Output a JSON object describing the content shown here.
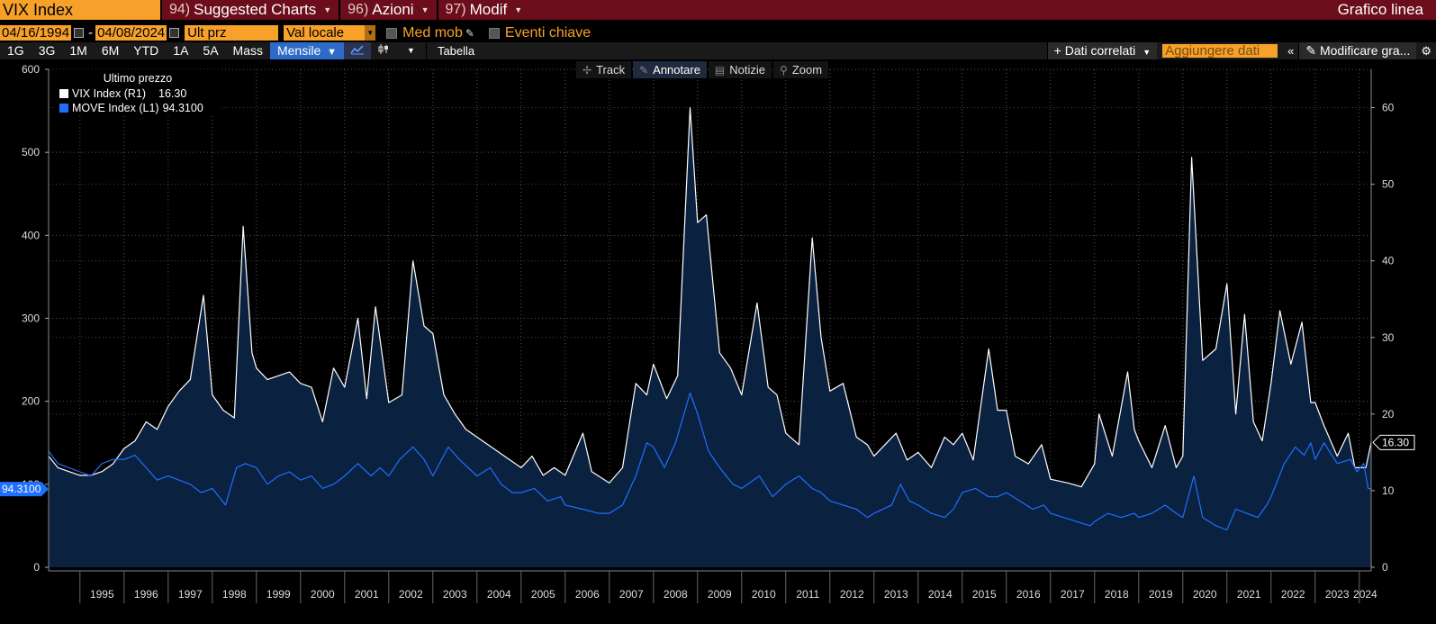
{
  "header": {
    "ticker": "VIX Index",
    "menus": [
      {
        "num": "94)",
        "label": "Suggested Charts"
      },
      {
        "num": "96)",
        "label": "Azioni"
      },
      {
        "num": "97)",
        "label": "Modif"
      }
    ],
    "chart_type_title": "Grafico linea"
  },
  "controls": {
    "start_date": "04/16/1994",
    "end_date": "04/08/2024",
    "price_field": "Ult prz",
    "currency": "Val locale",
    "moving_avg": "Med mob",
    "key_events": "Eventi chiave"
  },
  "toolbar": {
    "periods": [
      "1G",
      "3G",
      "1M",
      "6M",
      "YTD",
      "1A",
      "5A",
      "Mass"
    ],
    "frequency": "Mensile",
    "table": "Tabella",
    "related_data": "Dati correlati",
    "add_data_placeholder": "Aggiungere dati",
    "edit_chart": "Modificare gra..."
  },
  "chart_tools": [
    "Track",
    "Annotare",
    "Notizie",
    "Zoom"
  ],
  "legend": {
    "title": "Ultimo prezzo",
    "items": [
      {
        "name": "VIX Index",
        "axis": "(R1)",
        "value": "16.30",
        "color": "#ffffff"
      },
      {
        "name": "MOVE Index",
        "axis": "(L1)",
        "value": "94.3100",
        "color": "#1e6fff"
      }
    ]
  },
  "chart_data": {
    "type": "line",
    "title": "",
    "x_labels": [
      "1995",
      "1996",
      "1997",
      "1998",
      "1999",
      "2000",
      "2001",
      "2002",
      "2003",
      "2004",
      "2005",
      "2006",
      "2007",
      "2008",
      "2009",
      "2010",
      "2011",
      "2012",
      "2013",
      "2014",
      "2015",
      "2016",
      "2017",
      "2018",
      "2019",
      "2020",
      "2021",
      "2022",
      "2023",
      "2024"
    ],
    "x_range": [
      1994.29,
      2024.27
    ],
    "left_axis": {
      "range": [
        0,
        600
      ],
      "ticks": [
        0,
        100,
        200,
        300,
        400,
        500,
        600
      ],
      "last_value_label": "94.3100"
    },
    "right_axis": {
      "range": [
        0,
        65
      ],
      "ticks": [
        0,
        10,
        20,
        30,
        40,
        50,
        60
      ],
      "last_value_label": "16.30"
    },
    "series": [
      {
        "name": "VIX Index",
        "axis": "right",
        "color": "#ffffff",
        "fill": "#0b2140",
        "points": [
          [
            1994.29,
            14.5
          ],
          [
            1994.5,
            13.0
          ],
          [
            1994.75,
            12.5
          ],
          [
            1995.0,
            12.0
          ],
          [
            1995.25,
            12.0
          ],
          [
            1995.5,
            12.5
          ],
          [
            1995.75,
            13.5
          ],
          [
            1996.0,
            15.5
          ],
          [
            1996.25,
            16.5
          ],
          [
            1996.5,
            19.0
          ],
          [
            1996.75,
            18.0
          ],
          [
            1997.0,
            21.0
          ],
          [
            1997.25,
            23.0
          ],
          [
            1997.5,
            24.5
          ],
          [
            1997.8,
            35.5
          ],
          [
            1998.0,
            22.5
          ],
          [
            1998.25,
            20.5
          ],
          [
            1998.5,
            19.5
          ],
          [
            1998.7,
            44.5
          ],
          [
            1998.9,
            28.0
          ],
          [
            1999.0,
            26.0
          ],
          [
            1999.25,
            24.5
          ],
          [
            1999.5,
            25.0
          ],
          [
            1999.75,
            25.5
          ],
          [
            2000.0,
            24.0
          ],
          [
            2000.25,
            23.5
          ],
          [
            2000.5,
            19.0
          ],
          [
            2000.75,
            26.0
          ],
          [
            2001.0,
            23.5
          ],
          [
            2001.3,
            32.5
          ],
          [
            2001.5,
            22.0
          ],
          [
            2001.7,
            34.0
          ],
          [
            2002.0,
            21.5
          ],
          [
            2002.3,
            22.5
          ],
          [
            2002.55,
            40.0
          ],
          [
            2002.8,
            31.5
          ],
          [
            2003.0,
            30.5
          ],
          [
            2003.25,
            22.5
          ],
          [
            2003.5,
            20.0
          ],
          [
            2003.75,
            18.0
          ],
          [
            2004.0,
            17.0
          ],
          [
            2004.25,
            16.0
          ],
          [
            2004.5,
            15.0
          ],
          [
            2004.75,
            14.0
          ],
          [
            2005.0,
            13.0
          ],
          [
            2005.25,
            14.5
          ],
          [
            2005.5,
            12.0
          ],
          [
            2005.75,
            13.0
          ],
          [
            2006.0,
            12.0
          ],
          [
            2006.4,
            17.5
          ],
          [
            2006.6,
            12.5
          ],
          [
            2007.0,
            11.0
          ],
          [
            2007.3,
            13.0
          ],
          [
            2007.6,
            24.0
          ],
          [
            2007.85,
            22.5
          ],
          [
            2008.0,
            26.5
          ],
          [
            2008.3,
            22.0
          ],
          [
            2008.55,
            25.0
          ],
          [
            2008.83,
            60.0
          ],
          [
            2009.0,
            45.0
          ],
          [
            2009.2,
            46.0
          ],
          [
            2009.5,
            28.0
          ],
          [
            2009.75,
            26.0
          ],
          [
            2010.0,
            22.5
          ],
          [
            2010.35,
            34.5
          ],
          [
            2010.6,
            23.5
          ],
          [
            2010.8,
            22.5
          ],
          [
            2011.0,
            17.5
          ],
          [
            2011.3,
            16.0
          ],
          [
            2011.6,
            43.0
          ],
          [
            2011.8,
            30.0
          ],
          [
            2012.0,
            23.0
          ],
          [
            2012.3,
            24.0
          ],
          [
            2012.6,
            17.0
          ],
          [
            2012.85,
            16.0
          ],
          [
            2013.0,
            14.5
          ],
          [
            2013.5,
            17.5
          ],
          [
            2013.75,
            14.0
          ],
          [
            2014.0,
            15.0
          ],
          [
            2014.3,
            13.0
          ],
          [
            2014.6,
            17.0
          ],
          [
            2014.8,
            16.0
          ],
          [
            2015.0,
            17.5
          ],
          [
            2015.25,
            14.0
          ],
          [
            2015.6,
            28.5
          ],
          [
            2015.8,
            20.5
          ],
          [
            2016.0,
            20.5
          ],
          [
            2016.2,
            14.5
          ],
          [
            2016.5,
            13.5
          ],
          [
            2016.8,
            16.0
          ],
          [
            2017.0,
            11.5
          ],
          [
            2017.4,
            11.0
          ],
          [
            2017.7,
            10.5
          ],
          [
            2018.0,
            13.5
          ],
          [
            2018.1,
            20.0
          ],
          [
            2018.4,
            14.5
          ],
          [
            2018.75,
            25.5
          ],
          [
            2018.9,
            18.0
          ],
          [
            2019.0,
            16.5
          ],
          [
            2019.3,
            13.0
          ],
          [
            2019.6,
            18.5
          ],
          [
            2019.85,
            13.0
          ],
          [
            2020.0,
            14.5
          ],
          [
            2020.2,
            53.5
          ],
          [
            2020.45,
            27.0
          ],
          [
            2020.75,
            28.5
          ],
          [
            2021.0,
            37.0
          ],
          [
            2021.2,
            20.0
          ],
          [
            2021.4,
            33.0
          ],
          [
            2021.6,
            19.0
          ],
          [
            2021.8,
            16.5
          ],
          [
            2022.0,
            24.0
          ],
          [
            2022.2,
            33.5
          ],
          [
            2022.45,
            26.5
          ],
          [
            2022.7,
            32.0
          ],
          [
            2022.9,
            21.5
          ],
          [
            2023.0,
            21.5
          ],
          [
            2023.2,
            18.5
          ],
          [
            2023.5,
            14.5
          ],
          [
            2023.75,
            17.5
          ],
          [
            2023.9,
            13.0
          ],
          [
            2024.0,
            13.0
          ],
          [
            2024.15,
            13.0
          ],
          [
            2024.27,
            16.3
          ]
        ]
      },
      {
        "name": "MOVE Index",
        "axis": "left",
        "color": "#1e6fff",
        "points": [
          [
            1994.29,
            140
          ],
          [
            1994.5,
            125
          ],
          [
            1994.75,
            120
          ],
          [
            1995.0,
            115
          ],
          [
            1995.25,
            110
          ],
          [
            1995.5,
            125
          ],
          [
            1995.75,
            130
          ],
          [
            1996.0,
            130
          ],
          [
            1996.25,
            135
          ],
          [
            1996.5,
            120
          ],
          [
            1996.75,
            105
          ],
          [
            1997.0,
            110
          ],
          [
            1997.25,
            105
          ],
          [
            1997.5,
            100
          ],
          [
            1997.75,
            90
          ],
          [
            1998.0,
            95
          ],
          [
            1998.3,
            75
          ],
          [
            1998.55,
            120
          ],
          [
            1998.75,
            125
          ],
          [
            1999.0,
            120
          ],
          [
            1999.25,
            100
          ],
          [
            1999.5,
            110
          ],
          [
            1999.75,
            115
          ],
          [
            2000.0,
            105
          ],
          [
            2000.25,
            110
          ],
          [
            2000.5,
            95
          ],
          [
            2000.75,
            100
          ],
          [
            2001.0,
            110
          ],
          [
            2001.3,
            125
          ],
          [
            2001.6,
            110
          ],
          [
            2001.8,
            120
          ],
          [
            2002.0,
            110
          ],
          [
            2002.25,
            130
          ],
          [
            2002.55,
            145
          ],
          [
            2002.8,
            130
          ],
          [
            2003.0,
            110
          ],
          [
            2003.35,
            145
          ],
          [
            2003.6,
            130
          ],
          [
            2003.8,
            120
          ],
          [
            2004.0,
            110
          ],
          [
            2004.3,
            120
          ],
          [
            2004.55,
            100
          ],
          [
            2004.8,
            90
          ],
          [
            2005.0,
            90
          ],
          [
            2005.3,
            95
          ],
          [
            2005.6,
            80
          ],
          [
            2005.9,
            85
          ],
          [
            2006.0,
            75
          ],
          [
            2006.4,
            70
          ],
          [
            2006.75,
            65
          ],
          [
            2007.0,
            65
          ],
          [
            2007.3,
            75
          ],
          [
            2007.6,
            110
          ],
          [
            2007.85,
            150
          ],
          [
            2008.0,
            145
          ],
          [
            2008.25,
            120
          ],
          [
            2008.5,
            150
          ],
          [
            2008.83,
            210
          ],
          [
            2009.0,
            185
          ],
          [
            2009.25,
            140
          ],
          [
            2009.5,
            120
          ],
          [
            2009.8,
            100
          ],
          [
            2010.0,
            95
          ],
          [
            2010.4,
            110
          ],
          [
            2010.7,
            85
          ],
          [
            2010.9,
            95
          ],
          [
            2011.0,
            100
          ],
          [
            2011.3,
            110
          ],
          [
            2011.6,
            95
          ],
          [
            2011.8,
            90
          ],
          [
            2012.0,
            80
          ],
          [
            2012.3,
            75
          ],
          [
            2012.6,
            70
          ],
          [
            2012.85,
            60
          ],
          [
            2013.0,
            65
          ],
          [
            2013.4,
            75
          ],
          [
            2013.6,
            100
          ],
          [
            2013.8,
            80
          ],
          [
            2014.0,
            75
          ],
          [
            2014.3,
            65
          ],
          [
            2014.6,
            60
          ],
          [
            2014.8,
            70
          ],
          [
            2015.0,
            90
          ],
          [
            2015.3,
            95
          ],
          [
            2015.6,
            85
          ],
          [
            2015.8,
            85
          ],
          [
            2016.0,
            90
          ],
          [
            2016.3,
            80
          ],
          [
            2016.6,
            70
          ],
          [
            2016.85,
            75
          ],
          [
            2017.0,
            65
          ],
          [
            2017.3,
            60
          ],
          [
            2017.6,
            55
          ],
          [
            2017.9,
            50
          ],
          [
            2018.0,
            55
          ],
          [
            2018.3,
            65
          ],
          [
            2018.6,
            60
          ],
          [
            2018.9,
            65
          ],
          [
            2019.0,
            60
          ],
          [
            2019.3,
            65
          ],
          [
            2019.6,
            75
          ],
          [
            2019.85,
            65
          ],
          [
            2020.0,
            60
          ],
          [
            2020.25,
            110
          ],
          [
            2020.45,
            60
          ],
          [
            2020.75,
            50
          ],
          [
            2021.0,
            45
          ],
          [
            2021.2,
            70
          ],
          [
            2021.45,
            65
          ],
          [
            2021.7,
            60
          ],
          [
            2021.9,
            75
          ],
          [
            2022.0,
            85
          ],
          [
            2022.3,
            125
          ],
          [
            2022.55,
            145
          ],
          [
            2022.75,
            135
          ],
          [
            2022.9,
            150
          ],
          [
            2023.0,
            130
          ],
          [
            2023.2,
            150
          ],
          [
            2023.5,
            125
          ],
          [
            2023.8,
            130
          ],
          [
            2023.95,
            115
          ],
          [
            2024.1,
            125
          ],
          [
            2024.2,
            95
          ],
          [
            2024.27,
            94.31
          ]
        ]
      }
    ]
  }
}
